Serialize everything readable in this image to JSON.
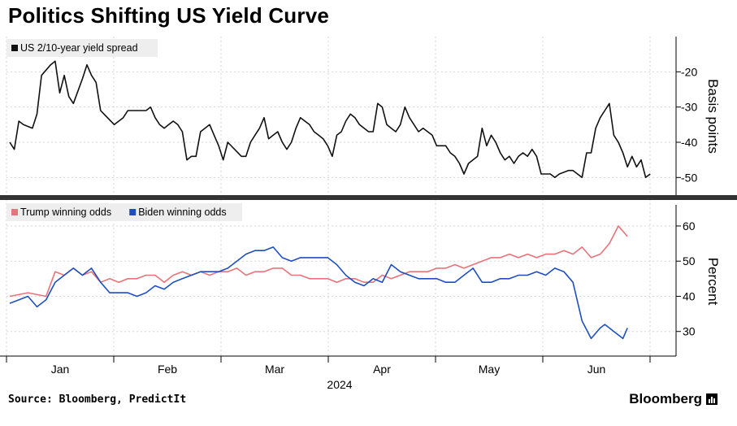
{
  "title": "Politics Shifting US Yield Curve",
  "source": "Source: Bloomberg, PredictIt",
  "brand": "Bloomberg",
  "colors": {
    "spread": "#111111",
    "trump": "#e8737a",
    "biden": "#1f4fbf",
    "grid": "#d6d6d6",
    "divider": "#333333"
  },
  "chart_data": [
    {
      "type": "line",
      "ylabel": "Basis points",
      "ylim": [
        -55,
        -10
      ],
      "yticks": [
        -20,
        -30,
        -40,
        -50
      ],
      "grid": true,
      "legend_position": "top-left",
      "series": [
        {
          "name": "US 2/10-year yield spread",
          "color": "#111111",
          "x": [
            0,
            1,
            2,
            3,
            5,
            6,
            7,
            9,
            10,
            11,
            12,
            13,
            14,
            16,
            17,
            18,
            19,
            20,
            23,
            24,
            25,
            26,
            27,
            30,
            31,
            32,
            33,
            34,
            35,
            36,
            37,
            38,
            39,
            40,
            41,
            42,
            44,
            45,
            46,
            47,
            48,
            51,
            52,
            53,
            54,
            55,
            56,
            57,
            58,
            59,
            60,
            61,
            62,
            63,
            64,
            65,
            66,
            67,
            68,
            69,
            70,
            71,
            72,
            73,
            74,
            75,
            76,
            77,
            79,
            80,
            81,
            82,
            83,
            84,
            85,
            86,
            87,
            88,
            89,
            90,
            91,
            92,
            93,
            94,
            95,
            96,
            97,
            98,
            99,
            100,
            101,
            103,
            104,
            105,
            106,
            107,
            108,
            109,
            110,
            111,
            112,
            113,
            114,
            115,
            116,
            117,
            118,
            119,
            120,
            121,
            123,
            124,
            125,
            126,
            127,
            128,
            129,
            130,
            131,
            132,
            133,
            134,
            135,
            136,
            137,
            138,
            139,
            140,
            141
          ],
          "y": [
            -40,
            -42,
            -34,
            -35,
            -36,
            -32,
            -21,
            -18,
            -17,
            -26,
            -21,
            -27,
            -29,
            -22,
            -18,
            -21,
            -23,
            -31,
            -35,
            -34,
            -33,
            -31,
            -31,
            -31,
            -30,
            -33,
            -35,
            -36,
            -35,
            -34,
            -35,
            -37,
            -45,
            -44,
            -44,
            -37,
            -35,
            -38,
            -41,
            -45,
            -40,
            -44,
            -44,
            -40,
            -38,
            -36,
            -33,
            -39,
            -38,
            -37,
            -40,
            -42,
            -40,
            -36,
            -33,
            -34,
            -35,
            -37,
            -38,
            -39,
            -41,
            -44,
            -38,
            -37,
            -34,
            -32,
            -33,
            -35,
            -37,
            -37,
            -29,
            -30,
            -35,
            -36,
            -37,
            -35,
            -30,
            -33,
            -35,
            -37,
            -36,
            -37,
            -38,
            -41,
            -41,
            -41,
            -43,
            -44,
            -46,
            -49,
            -46,
            -44,
            -36,
            -41,
            -38,
            -40,
            -43,
            -45,
            -44,
            -46,
            -44,
            -43,
            -44,
            -42,
            -44,
            -49,
            -49,
            -49,
            -50,
            -49,
            -48,
            -48,
            -49,
            -50,
            -43,
            -43,
            -36,
            -33,
            -31,
            -29,
            -38,
            -40,
            -43,
            -47,
            -44,
            -47,
            -45,
            -50,
            -49
          ]
        }
      ]
    },
    {
      "type": "line",
      "ylabel": "Percent",
      "xlabel": "2024",
      "x_tick_labels": [
        "Jan",
        "Feb",
        "Mar",
        "Apr",
        "May",
        "Jun"
      ],
      "ylim": [
        23,
        66
      ],
      "yticks": [
        60,
        50,
        40,
        30
      ],
      "grid": true,
      "legend_position": "top-left",
      "series": [
        {
          "name": "Trump winning odds",
          "color": "#e8737a",
          "x": [
            0,
            4,
            8,
            10,
            12,
            14,
            16,
            18,
            20,
            22,
            24,
            26,
            28,
            30,
            32,
            34,
            36,
            38,
            40,
            42,
            44,
            46,
            48,
            50,
            52,
            54,
            56,
            58,
            60,
            62,
            64,
            66,
            68,
            70,
            72,
            74,
            76,
            78,
            80,
            82,
            84,
            86,
            88,
            90,
            92,
            94,
            96,
            98,
            100,
            102,
            104,
            106,
            108,
            110,
            112,
            114,
            116,
            118,
            120,
            122,
            124,
            126,
            128,
            130,
            132,
            134,
            136
          ],
          "y": [
            40,
            41,
            40,
            47,
            46,
            48,
            46,
            47,
            44,
            45,
            44,
            45,
            45,
            46,
            46,
            44,
            46,
            47,
            46,
            47,
            46,
            47,
            47,
            48,
            46,
            47,
            47,
            48,
            48,
            46,
            46,
            45,
            45,
            45,
            44,
            45,
            45,
            44,
            44,
            46,
            45,
            46,
            47,
            47,
            47,
            48,
            48,
            49,
            48,
            49,
            50,
            51,
            51,
            52,
            51,
            52,
            51,
            52,
            52,
            53,
            52,
            54,
            51,
            52,
            55,
            60,
            57
          ]
        },
        {
          "name": "Biden winning odds",
          "color": "#1f4fbf",
          "x": [
            0,
            4,
            6,
            8,
            10,
            12,
            14,
            16,
            18,
            20,
            22,
            24,
            26,
            28,
            30,
            32,
            34,
            36,
            38,
            40,
            42,
            44,
            46,
            48,
            50,
            52,
            54,
            56,
            58,
            60,
            62,
            64,
            66,
            68,
            70,
            72,
            74,
            76,
            78,
            80,
            82,
            84,
            86,
            88,
            90,
            92,
            94,
            96,
            98,
            100,
            102,
            104,
            106,
            108,
            110,
            112,
            114,
            116,
            118,
            120,
            122,
            124,
            126,
            128,
            130,
            131,
            132,
            133,
            134,
            135,
            136
          ],
          "y": [
            38,
            40,
            37,
            39,
            44,
            46,
            48,
            46,
            48,
            44,
            41,
            41,
            41,
            40,
            41,
            43,
            42,
            44,
            45,
            46,
            47,
            47,
            47,
            48,
            50,
            52,
            53,
            53,
            54,
            51,
            50,
            51,
            51,
            51,
            51,
            49,
            46,
            44,
            43,
            45,
            44,
            49,
            47,
            46,
            45,
            45,
            45,
            44,
            44,
            46,
            48,
            44,
            44,
            45,
            45,
            46,
            46,
            47,
            46,
            48,
            47,
            44,
            33,
            28,
            31,
            32,
            31,
            30,
            29,
            28,
            31
          ]
        }
      ]
    }
  ]
}
